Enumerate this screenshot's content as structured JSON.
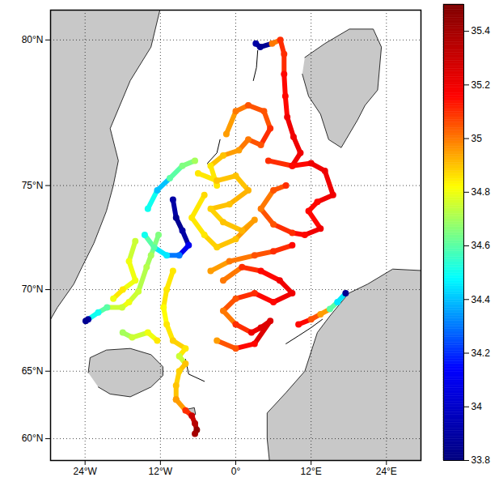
{
  "chart_data": {
    "type": "map",
    "xlim": [
      -29.5,
      29.5
    ],
    "xticks": [
      {
        "value": -24,
        "label": "24°W"
      },
      {
        "value": -12,
        "label": "12°W"
      },
      {
        "value": 0,
        "label": "0°"
      },
      {
        "value": 12,
        "label": "12°E"
      },
      {
        "value": 24,
        "label": "24°E"
      }
    ],
    "ylim": [
      58.2,
      80.8
    ],
    "yticks": [
      {
        "value": 60,
        "label": "60°N"
      },
      {
        "value": 65,
        "label": "65°N"
      },
      {
        "value": 70,
        "label": "70°N"
      },
      {
        "value": 75,
        "label": "75°N"
      },
      {
        "value": 80,
        "label": "80°N"
      }
    ],
    "grid": true,
    "land": {
      "color": "#c8c8c8",
      "polygons": [
        [
          [
            -31,
            81.5
          ],
          [
            -11,
            81.5
          ],
          [
            -13.5,
            79.8
          ],
          [
            -16.8,
            78.8
          ],
          [
            -20,
            77.2
          ],
          [
            -18.7,
            76
          ],
          [
            -19.5,
            75
          ],
          [
            -20.6,
            73.9
          ],
          [
            -22.6,
            72.4
          ],
          [
            -24.5,
            71.2
          ],
          [
            -25.8,
            70.3
          ],
          [
            -28.4,
            69
          ],
          [
            -31,
            67.3
          ]
        ],
        [
          [
            -23.5,
            64.9
          ],
          [
            -23.2,
            65.9
          ],
          [
            -20.6,
            66.4
          ],
          [
            -16.8,
            66.5
          ],
          [
            -13.5,
            66.1
          ],
          [
            -11.6,
            65.3
          ],
          [
            -11.6,
            64.7
          ],
          [
            -13.5,
            63.9
          ],
          [
            -16.8,
            63.2
          ],
          [
            -20,
            63.4
          ],
          [
            -21.9,
            63.9
          ]
        ],
        [
          [
            11,
            79.5
          ],
          [
            14.2,
            79.9
          ],
          [
            18.1,
            80.3
          ],
          [
            21.9,
            80.3
          ],
          [
            23.2,
            79.8
          ],
          [
            22.6,
            78.5
          ],
          [
            20.6,
            78.0
          ],
          [
            19.4,
            77.5
          ],
          [
            16.8,
            76.5
          ],
          [
            14.8,
            76.8
          ],
          [
            13.5,
            77.7
          ],
          [
            11.6,
            78.3
          ],
          [
            10.6,
            79.0
          ]
        ],
        [
          [
            31,
            71
          ],
          [
            25,
            71.1
          ],
          [
            21,
            70.3
          ],
          [
            18,
            69.8
          ],
          [
            15,
            68.5
          ],
          [
            13,
            67.5
          ],
          [
            11,
            65
          ],
          [
            8,
            63.5
          ],
          [
            5,
            62
          ],
          [
            5,
            60
          ],
          [
            5.5,
            57.5
          ],
          [
            31,
            57.5
          ]
        ],
        [
          [
            -7.6,
            62.3
          ],
          [
            -6.6,
            62.4
          ],
          [
            -6.4,
            61.9
          ],
          [
            -7.2,
            61.8
          ]
        ]
      ]
    },
    "tracks": [
      [
        [
          3.2,
          79.9,
          33.9
        ],
        [
          3.9,
          79.8,
          33.85
        ],
        [
          5.8,
          79.9,
          35.0
        ],
        [
          7.1,
          80.0,
          35.1
        ],
        [
          7.7,
          79.6,
          35.1
        ],
        [
          7.7,
          79.0,
          35.15
        ],
        [
          7.9,
          78.3,
          35.15
        ],
        [
          8.2,
          77.6,
          35.2
        ],
        [
          9.2,
          76.9,
          35.2
        ],
        [
          10.3,
          76.3,
          35.2
        ],
        [
          9.0,
          75.8,
          35.15
        ]
      ],
      [
        [
          -1.5,
          77.0,
          34.95
        ],
        [
          0,
          77.8,
          35.0
        ],
        [
          2,
          78.0,
          35.05
        ],
        [
          4.5,
          77.8,
          35.05
        ],
        [
          5.5,
          77.2,
          35.1
        ],
        [
          4,
          76.6,
          35.05
        ],
        [
          2,
          76.8,
          35.0
        ],
        [
          0.5,
          76.4,
          34.95
        ],
        [
          -2,
          76.2,
          34.9
        ],
        [
          -4,
          75.8,
          34.85
        ],
        [
          -3,
          75.0,
          34.85
        ]
      ],
      [
        [
          5.2,
          76.0,
          35.1
        ],
        [
          9,
          75.8,
          35.15
        ],
        [
          12,
          75.9,
          35.2
        ],
        [
          14.2,
          75.6,
          35.2
        ],
        [
          15.5,
          74.6,
          35.2
        ],
        [
          13,
          74.3,
          35.15
        ],
        [
          11.6,
          73.9,
          35.15
        ],
        [
          13.5,
          73.1,
          35.2
        ],
        [
          11,
          72.8,
          35.15
        ],
        [
          9,
          72.9,
          35.1
        ],
        [
          6,
          73.3,
          35.05
        ],
        [
          4,
          74.0,
          35.0
        ],
        [
          6,
          74.8,
          35.05
        ],
        [
          8,
          75.0,
          35.1
        ]
      ],
      [
        [
          -6,
          75.5,
          34.85
        ],
        [
          -3,
          75.2,
          34.9
        ],
        [
          0,
          75.4,
          34.9
        ],
        [
          2,
          74.8,
          34.92
        ],
        [
          -1,
          74.2,
          34.9
        ],
        [
          -4,
          74.0,
          34.88
        ],
        [
          -2,
          73.4,
          34.9
        ],
        [
          1,
          73.0,
          34.92
        ],
        [
          3,
          73.5,
          34.95
        ],
        [
          0,
          72.6,
          34.9
        ],
        [
          -3,
          72.2,
          34.88
        ],
        [
          -5,
          72.8,
          34.85
        ],
        [
          -7,
          73.6,
          34.85
        ],
        [
          -5,
          74.6,
          34.87
        ]
      ],
      [
        [
          -14,
          74.0,
          34.5
        ],
        [
          -12.5,
          74.8,
          34.4
        ],
        [
          -10.5,
          75.3,
          34.6
        ],
        [
          -8.5,
          75.8,
          34.65
        ],
        [
          -6.5,
          76.0,
          34.7
        ]
      ],
      [
        [
          -10,
          74.4,
          33.9
        ],
        [
          -9.5,
          73.6,
          33.85
        ],
        [
          -8.5,
          73.0,
          33.9
        ],
        [
          -7.5,
          72.3,
          34.1
        ],
        [
          -9,
          71.8,
          34.3
        ],
        [
          -11,
          71.8,
          34.45
        ],
        [
          -13,
          72.2,
          34.6
        ],
        [
          -14.5,
          72.8,
          34.5
        ]
      ],
      [
        [
          -12.3,
          72.8,
          34.65
        ],
        [
          -13.5,
          71.8,
          34.7
        ],
        [
          -14.2,
          71.2,
          34.72
        ],
        [
          -15.5,
          69.9,
          34.75
        ],
        [
          -17,
          69.3,
          34.8
        ],
        [
          -18.1,
          69.0,
          34.75
        ],
        [
          -20.5,
          69.0,
          34.6
        ],
        [
          -21.9,
          68.7,
          34.5
        ],
        [
          -23.5,
          68.3,
          33.9
        ],
        [
          -23.9,
          68.2,
          33.85
        ]
      ],
      [
        [
          -10,
          71.0,
          34.85
        ],
        [
          -11,
          70.0,
          34.85
        ],
        [
          -11.5,
          69.0,
          34.82
        ],
        [
          -11,
          68.0,
          34.85
        ],
        [
          -10,
          67.0,
          34.88
        ],
        [
          -8,
          66.5,
          34.85
        ],
        [
          -9,
          66.0,
          34.75
        ],
        [
          -8,
          65.5,
          34.9
        ],
        [
          -9,
          65.0,
          34.88
        ],
        [
          -9.5,
          64.0,
          34.9
        ],
        [
          -9.5,
          63.0,
          34.95
        ]
      ],
      [
        [
          -9.5,
          63.0,
          34.95
        ],
        [
          -8,
          62.2,
          35.1
        ],
        [
          -7,
          61.8,
          35.3
        ],
        [
          -6.5,
          61.2,
          35.35
        ],
        [
          -6.2,
          60.7,
          35.45
        ],
        [
          -6.5,
          60.4,
          35.4
        ]
      ],
      [
        [
          -2,
          70.5,
          35.0
        ],
        [
          1,
          71.2,
          35.1
        ],
        [
          4,
          71.0,
          35.15
        ],
        [
          7,
          70.5,
          35.2
        ],
        [
          9,
          69.8,
          35.2
        ],
        [
          6,
          69.3,
          35.15
        ],
        [
          3,
          69.8,
          35.1
        ],
        [
          0,
          69.5,
          35.05
        ],
        [
          -2,
          68.8,
          35.0
        ],
        [
          0,
          68.0,
          35.1
        ],
        [
          2.5,
          67.5,
          35.2
        ],
        [
          4,
          67.8,
          35.25
        ],
        [
          5.5,
          68.2,
          35.25
        ],
        [
          3,
          66.8,
          35.15
        ],
        [
          0,
          66.5,
          35.05
        ],
        [
          -3,
          67.0,
          34.95
        ]
      ],
      [
        [
          10,
          68.0,
          35.15
        ],
        [
          12,
          68.3,
          35.05
        ],
        [
          13.5,
          68.6,
          34.95
        ],
        [
          15,
          68.9,
          34.6
        ],
        [
          16.2,
          69.3,
          34.45
        ],
        [
          17.5,
          69.8,
          33.85
        ]
      ],
      [
        [
          -4,
          71.0,
          34.95
        ],
        [
          -1,
          71.5,
          35.0
        ],
        [
          3,
          71.8,
          35.05
        ],
        [
          6,
          72.0,
          35.1
        ],
        [
          9,
          72.3,
          35.15
        ]
      ],
      [
        [
          -16,
          72.5,
          34.75
        ],
        [
          -17,
          71.5,
          34.8
        ],
        [
          -16,
          70.5,
          34.8
        ],
        [
          -18,
          70.0,
          34.85
        ],
        [
          -19.5,
          69.5,
          34.8
        ]
      ],
      [
        [
          -18,
          67.5,
          34.7
        ],
        [
          -16.5,
          67.2,
          34.75
        ],
        [
          -14,
          67.5,
          34.8
        ],
        [
          -12.5,
          67.0,
          34.85
        ]
      ]
    ],
    "other_tracks": {
      "color": "#000000",
      "lines": [
        [
          [
            3.5,
            79.7
          ],
          [
            3.3,
            79.2
          ],
          [
            2.8,
            78.8
          ]
        ],
        [
          [
            -2.5,
            76.8
          ],
          [
            -3,
            76.3
          ],
          [
            -4.5,
            75.9
          ],
          [
            -3.5,
            75.4
          ]
        ],
        [
          [
            8,
            66.8
          ],
          [
            10,
            67.3
          ],
          [
            12,
            67.8
          ],
          [
            13.8,
            68.3
          ]
        ],
        [
          [
            -8,
            65.8
          ],
          [
            -7.5,
            64.8
          ],
          [
            -5,
            64.3
          ]
        ]
      ]
    },
    "colorbar": {
      "range": [
        33.8,
        35.5
      ],
      "ticks": [
        33.8,
        34,
        34.2,
        34.4,
        34.6,
        34.8,
        35,
        35.2,
        35.4
      ],
      "colors": [
        "#00007f",
        "#0000ff",
        "#00ffff",
        "#ffff00",
        "#ff0000",
        "#7f0000"
      ]
    }
  }
}
